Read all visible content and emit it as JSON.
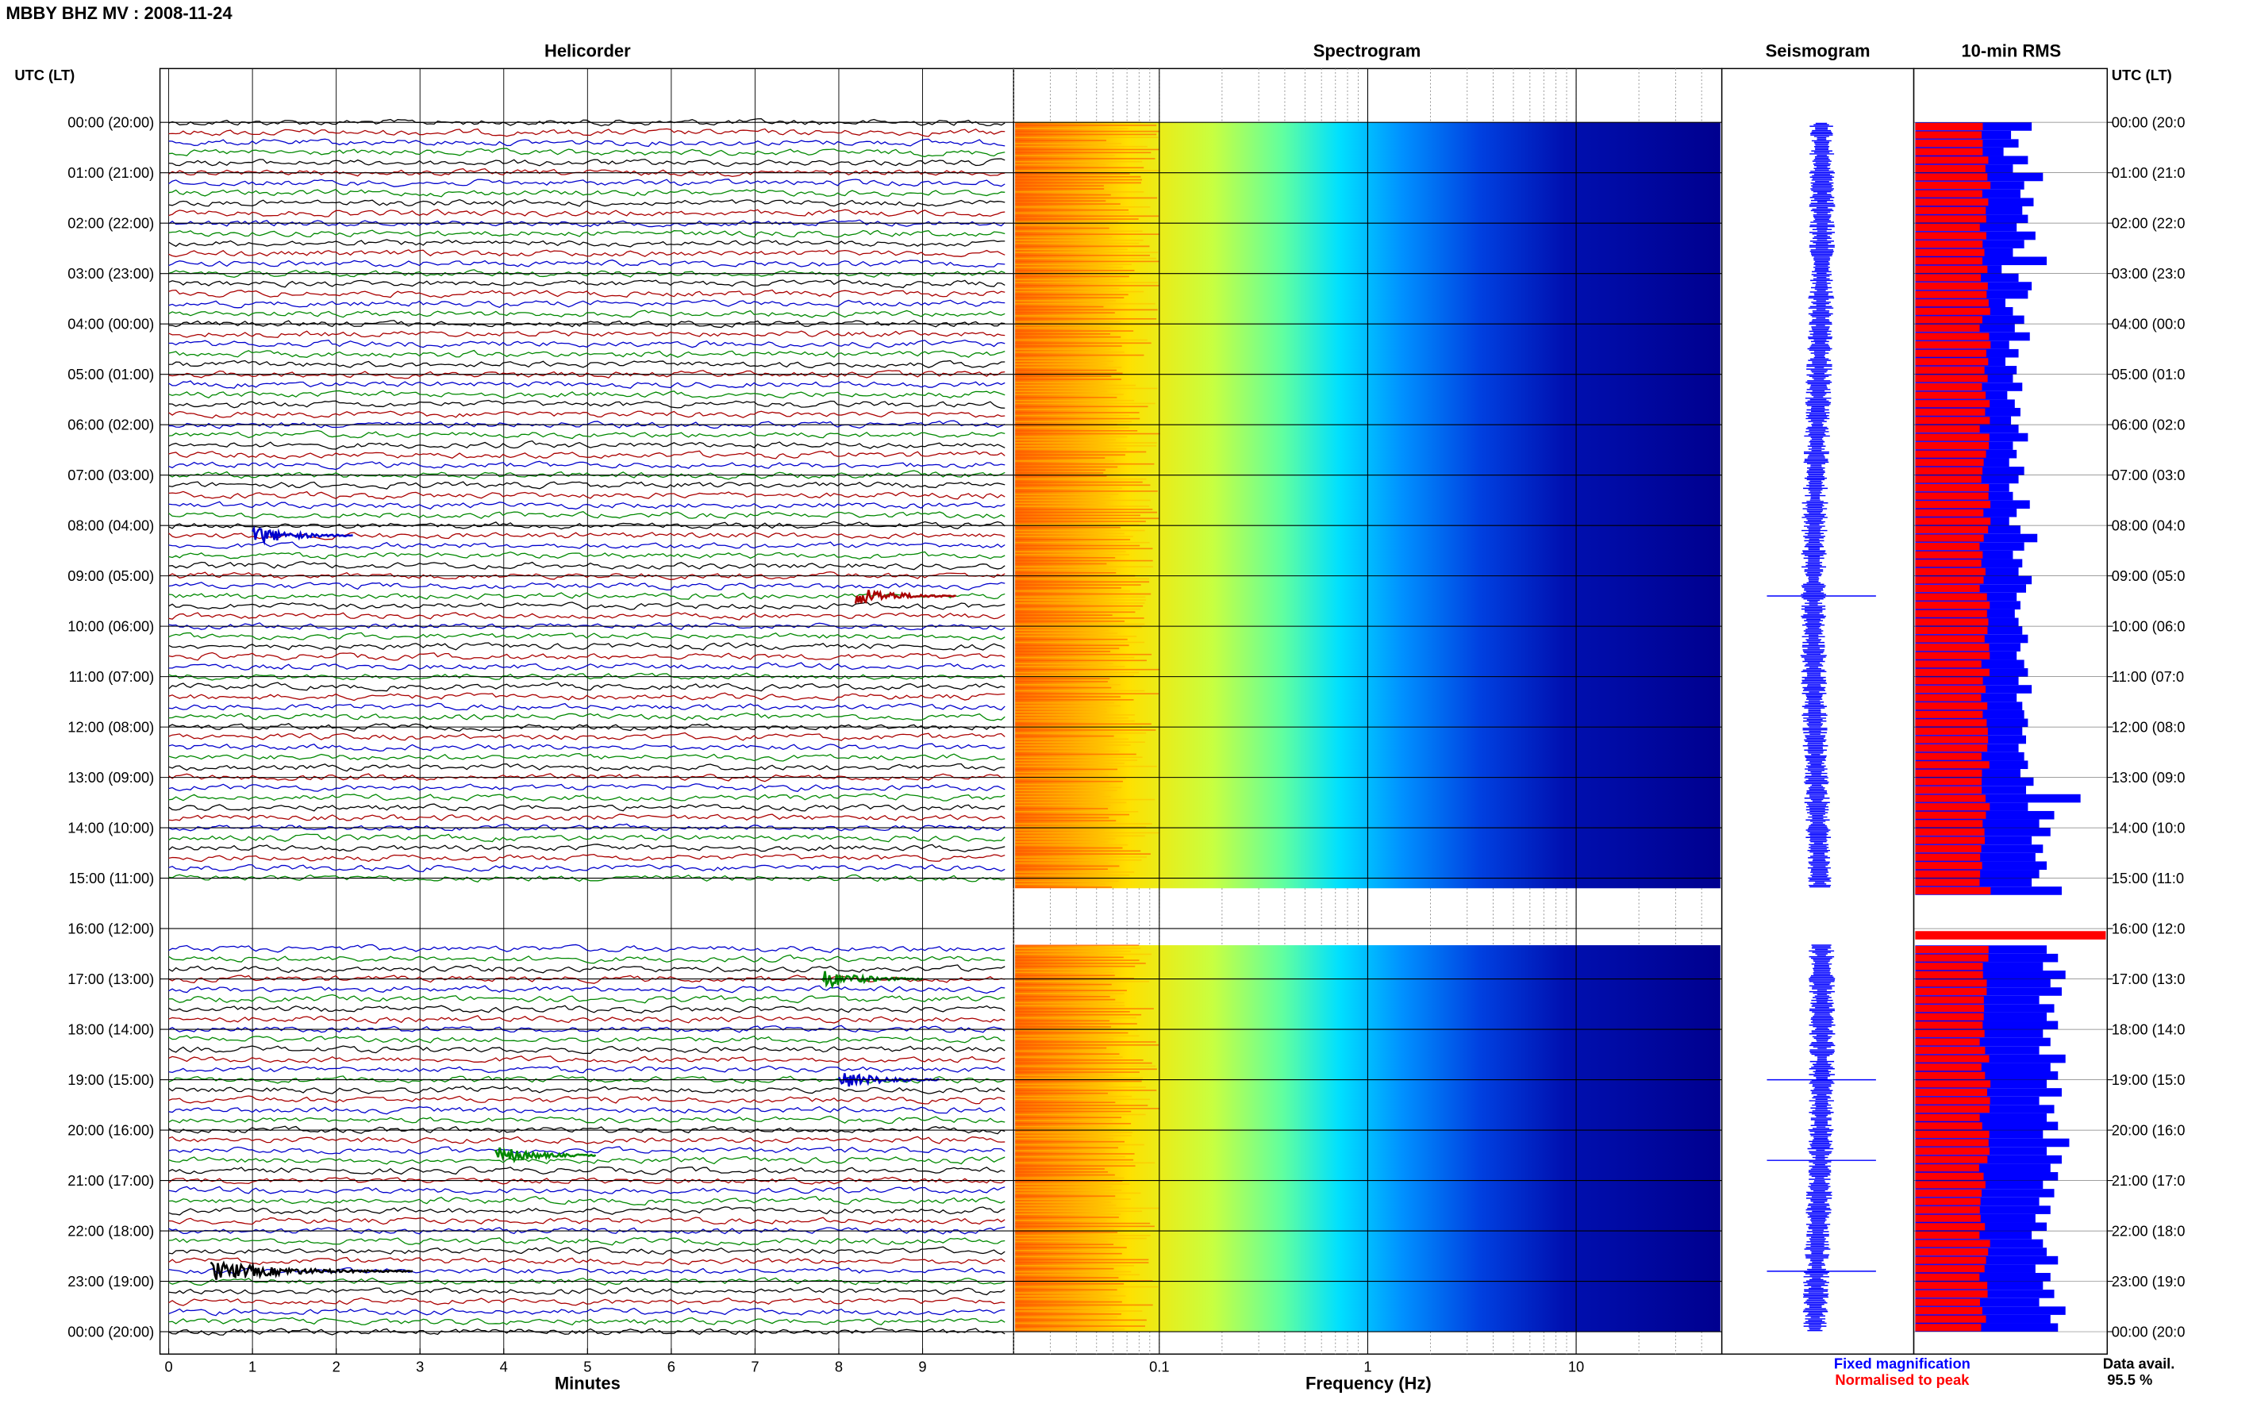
{
  "title": "MBBY BHZ MV : 2008-11-24",
  "panels": {
    "helicorder": "Helicorder",
    "spectrogram": "Spectrogram",
    "seismogram": "Seismogram",
    "rms": "10-min RMS"
  },
  "axis": {
    "left_title": "UTC (LT)",
    "right_title": "UTC (LT)",
    "minutes_label": "Minutes",
    "frequency_label": "Frequency (Hz)"
  },
  "legend": {
    "fixed": "Fixed magnification",
    "normalised": "Normalised to peak",
    "fixed_color": "#0000ff",
    "normalised_color": "#ff0000"
  },
  "availability": {
    "label": "Data avail.",
    "value": "95.5 %"
  },
  "colors": {
    "trace_cycle": [
      "#000000",
      "#aa0000",
      "#0000cc",
      "#008800"
    ],
    "spectrogram_low": "#00008f",
    "spectrogram_high": "#ff6a00",
    "rms_fixed": "#0000ff",
    "rms_normalised": "#ff0000"
  },
  "chart_data": {
    "type": "heatmap",
    "hour_labels": [
      "00:00 (20:00)",
      "01:00 (21:00)",
      "02:00 (22:00)",
      "03:00 (23:00)",
      "04:00 (00:00)",
      "05:00 (01:00)",
      "06:00 (02:00)",
      "07:00 (03:00)",
      "08:00 (04:00)",
      "09:00 (05:00)",
      "10:00 (06:00)",
      "11:00 (07:00)",
      "12:00 (08:00)",
      "13:00 (09:00)",
      "14:00 (10:00)",
      "15:00 (11:00)",
      "16:00 (12:00)",
      "17:00 (13:00)",
      "18:00 (14:00)",
      "19:00 (15:00)",
      "20:00 (16:00)",
      "21:00 (17:00)",
      "22:00 (18:00)",
      "23:00 (19:00)",
      "00:00 (20:00)"
    ],
    "right_hour_labels": [
      "00:00 (20:0",
      "01:00 (21:0",
      "02:00 (22:0",
      "03:00 (23:0",
      "04:00 (00:0",
      "05:00 (01:0",
      "06:00 (02:0",
      "07:00 (03:0",
      "08:00 (04:0",
      "09:00 (05:0",
      "10:00 (06:0",
      "11:00 (07:0",
      "12:00 (08:0",
      "13:00 (09:0",
      "14:00 (10:0",
      "15:00 (11:0",
      "16:00 (12:0",
      "17:00 (13:0",
      "18:00 (14:0",
      "19:00 (15:0",
      "20:00 (16:0",
      "21:00 (17:0",
      "22:00 (18:0",
      "23:00 (19:0",
      "00:00 (20:0"
    ],
    "minutes_ticks": [
      "0",
      "1",
      "2",
      "3",
      "4",
      "5",
      "6",
      "7",
      "8",
      "9"
    ],
    "frequency_ticks": [
      "0.1",
      "1",
      "10"
    ],
    "frequency_range_hz": [
      0.02,
      50
    ],
    "frequency_scale": "log",
    "gap_hours": [
      15.2,
      16.33
    ],
    "events": [
      {
        "hour": 8.2,
        "minute": 1.0,
        "color": "#0000cc"
      },
      {
        "hour": 9.4,
        "minute": 8.2,
        "color": "#aa0000"
      },
      {
        "hour": 17.0,
        "minute": 7.8,
        "color": "#008800"
      },
      {
        "hour": 19.0,
        "minute": 8.0,
        "color": "#0000cc"
      },
      {
        "hour": 20.5,
        "minute": 3.9,
        "color": "#008800"
      },
      {
        "hour": 22.8,
        "minute": 0.5,
        "color": "#000000"
      }
    ],
    "rms_fixed": [
      0.62,
      0.51,
      0.55,
      0.47,
      0.6,
      0.52,
      0.68,
      0.58,
      0.56,
      0.63,
      0.57,
      0.6,
      0.54,
      0.64,
      0.58,
      0.52,
      0.7,
      0.46,
      0.55,
      0.62,
      0.6,
      0.48,
      0.52,
      0.58,
      0.53,
      0.61,
      0.5,
      0.55,
      0.48,
      0.54,
      0.52,
      0.57,
      0.49,
      0.53,
      0.56,
      0.51,
      0.55,
      0.6,
      0.52,
      0.54,
      0.5,
      0.58,
      0.55,
      0.5,
      0.52,
      0.61,
      0.54,
      0.5,
      0.56,
      0.65,
      0.58,
      0.52,
      0.57,
      0.55,
      0.62,
      0.59,
      0.54,
      0.56,
      0.53,
      0.55,
      0.57,
      0.6,
      0.56,
      0.54,
      0.58,
      0.6,
      0.55,
      0.62,
      0.54,
      0.57,
      0.58,
      0.6,
      0.57,
      0.59,
      0.55,
      0.58,
      0.6,
      0.56,
      0.63,
      0.59,
      0.88,
      0.6,
      0.74,
      0.66,
      0.72,
      0.62,
      0.68,
      0.64,
      0.7,
      0.66,
      0.62,
      0.78,
      0.7,
      0.75,
      0.68,
      0.74,
      0.66,
      0.82,
      0.7,
      0.76,
      0.68,
      0.8,
      0.72,
      0.78,
      0.66,
      0.74,
      0.7,
      0.76,
      0.68,
      0.72,
      0.66,
      0.8,
      0.72,
      0.76,
      0.7,
      0.78,
      0.66,
      0.74,
      0.7,
      0.76,
      0.68,
      0.82,
      0.7,
      0.78,
      0.72,
      0.76,
      0.68,
      0.74,
      0.66,
      0.72,
      0.64,
      0.7,
      0.62,
      0.68,
      0.7,
      0.76,
      0.64,
      0.72,
      0.68,
      0.74,
      0.66,
      0.8,
      0.72,
      0.76,
      0.7,
      0.78,
      0.68,
      0.74,
      0.7,
      0.76,
      0.68,
      0.74,
      0.72,
      0.7,
      0.74,
      0.76,
      0.68,
      0.72,
      0.7,
      0.74,
      0.72,
      0.76,
      0.7,
      0.74,
      0.68,
      0.72,
      0.7,
      0.74,
      0.66,
      0.7,
      0.64,
      0.68,
      0.62,
      0.6,
      0.56,
      0.6,
      0.62,
      0.66,
      0.58,
      0.62,
      0.6,
      0.64,
      0.58,
      0.6,
      0.62,
      0.66,
      0.58,
      0.6,
      0.64,
      0.7,
      0.82,
      0.72,
      0.66,
      0.7,
      0.62,
      0.68,
      0.64,
      0.6,
      0.66,
      0.58,
      0.62,
      0.6,
      0.56,
      0.6,
      0.62,
      0.58,
      0.56,
      0.54,
      0.6,
      0.58,
      0.62,
      0.56,
      0.6,
      0.58,
      0.54,
      0.56,
      0.52,
      0.58,
      0.6,
      0.56,
      0.62,
      0.58,
      0.54,
      0.6,
      0.56,
      0.52,
      0.58,
      0.54,
      0.6,
      0.62,
      0.56,
      0.58,
      0.6,
      0.54,
      0.56,
      0.52,
      0.58,
      0.54,
      0.5,
      0.56,
      0.52,
      0.54,
      0.58,
      0.6,
      0.56,
      0.52,
      0.5,
      0.56,
      0.58,
      0.6,
      0.62,
      0.56,
      0.54,
      0.5,
      0.56,
      0.58,
      0.54,
      0.52,
      0.56,
      0.6,
      0.58,
      0.54,
      0.56,
      0.6,
      0.62,
      0.58,
      0.56,
      0.6,
      0.54,
      0.56,
      0.52,
      0.56,
      0.6,
      0.64,
      0.58,
      0.55,
      0.52,
      0.56,
      0.58,
      0.54,
      0.52,
      0.56,
      0.6,
      0.58,
      0.54,
      0.56,
      0.52,
      0.54,
      0.58,
      0.56,
      0.52,
      0.56,
      0.54,
      0.6,
      0.58,
      0.56,
      0.54,
      0.52,
      0.56,
      0.58,
      0.54,
      0.56,
      0.6,
      0.56,
      0.54,
      0.52,
      0.56,
      0.58,
      0.54,
      0.52,
      0.56,
      0.58,
      0.54,
      0.56,
      0.52,
      0.54,
      0.56,
      0.52,
      0.54,
      0.56,
      0.58,
      0.54,
      0.52,
      0.56,
      0.54,
      0.52,
      0.56,
      0.58,
      0.54,
      0.56,
      0.52,
      0.54,
      0.56,
      0.52,
      0.5,
      0.54,
      0.56,
      0.52,
      0.54,
      0.5,
      0.54,
      0.52,
      0.56,
      0.54,
      0.5,
      0.52,
      0.56,
      0.54,
      0.52,
      0.56,
      0.58,
      0.54,
      0.52,
      0.5,
      0.54,
      0.52,
      0.56,
      0.54,
      0.52,
      0.5,
      0.54,
      0.56,
      0.52,
      0.5,
      0.54,
      0.52,
      0.5,
      0.54,
      0.56,
      0.52,
      0.5,
      0.54,
      0.52,
      0.5,
      0.54,
      0.52,
      0.56,
      0.54,
      0.5,
      0.52,
      0.54,
      0.56,
      0.52,
      0.54,
      0.5,
      0.54,
      0.52,
      0.5,
      0.54,
      0.52,
      0.56,
      0.54,
      0.5,
      0.52,
      0.54,
      0.56,
      0.52,
      0.54,
      0.5,
      0.52,
      0.54,
      0.56,
      0.52,
      0.54,
      0.5,
      0.52,
      0.56,
      0.54,
      0.5,
      0.52,
      0.54,
      0.56,
      0.52,
      0.5,
      0.54,
      0.52,
      0.5,
      0.54,
      0.56,
      0.52,
      0.54,
      0.5,
      0.52,
      0.54,
      0.56,
      0.52,
      0.5,
      0.54,
      0.52,
      0.56,
      0.54,
      0.5,
      0.52,
      0.54,
      0.56,
      0.52,
      0.5,
      0.54,
      0.52,
      0.5,
      0.54,
      0.56,
      0.52
    ],
    "rms_spike": {
      "hour": 16.05,
      "value": 1.0
    }
  }
}
